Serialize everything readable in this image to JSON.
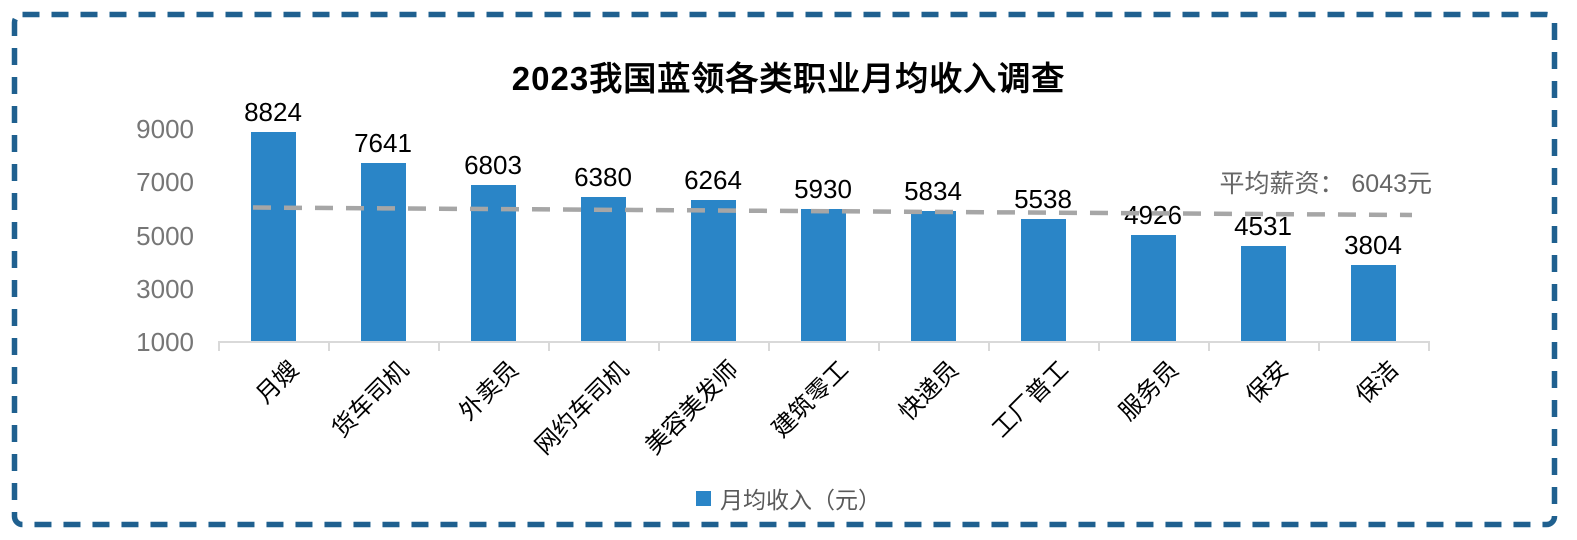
{
  "window": {
    "background": "#ffffff",
    "border_color": "#1f608f"
  },
  "chart_data": {
    "type": "bar",
    "title": "2023我国蓝领各类职业月均收入调查",
    "categories": [
      "月嫂",
      "货车司机",
      "外卖员",
      "网约车司机",
      "美容美发师",
      "建筑零工",
      "快递员",
      "工厂普工",
      "服务员",
      "保安",
      "保洁"
    ],
    "values": [
      8824,
      7641,
      6803,
      6380,
      6264,
      5930,
      5834,
      5538,
      4926,
      4531,
      3804
    ],
    "series": [
      {
        "name": "月均收入（元）",
        "values": [
          8824,
          7641,
          6803,
          6380,
          6264,
          5930,
          5834,
          5538,
          4926,
          4531,
          3804
        ]
      }
    ],
    "yticks": [
      1000,
      3000,
      5000,
      7000,
      9000
    ],
    "ylim": [
      1000,
      9400
    ],
    "grid": false,
    "bar_color": "#2a85c7",
    "axis_color": "#d9d9d9",
    "ytick_label_color": "#767676",
    "xtick_label_color": "#000000",
    "average_line": {
      "value": 6043,
      "label": "平均薪资： 6043元",
      "color": "#a6a6a6"
    },
    "legend": {
      "label": "月均收入（元）",
      "position": "bottom"
    }
  }
}
